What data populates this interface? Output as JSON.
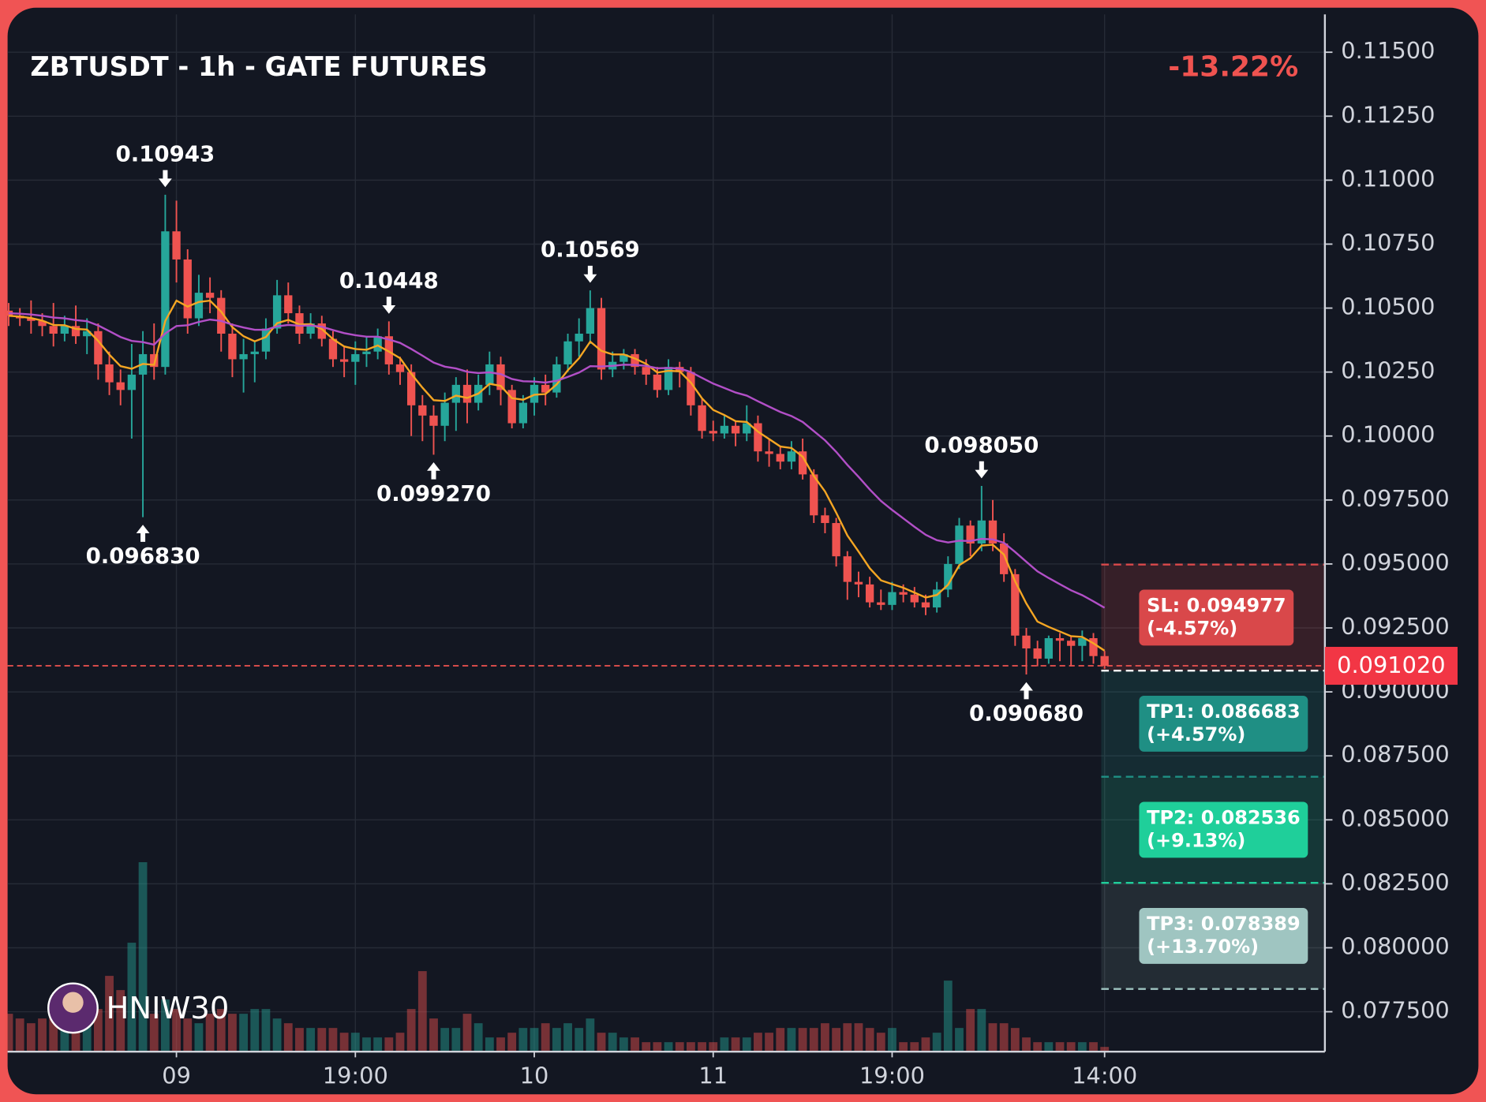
{
  "chart_data": {
    "type": "candlestick",
    "title": "ZBTUSDT - 1h - GATE FUTURES",
    "change_label": "-13.22%",
    "watermark": "HNIW30",
    "xlim": [
      -0.1,
      117.7
    ],
    "xticks": [
      {
        "value": 15,
        "label": "09"
      },
      {
        "value": 31,
        "label": "19:00"
      },
      {
        "value": 47,
        "label": "10"
      },
      {
        "value": 63,
        "label": "11"
      },
      {
        "value": 79,
        "label": "19:00"
      },
      {
        "value": 98,
        "label": "14:00"
      }
    ],
    "ylim": [
      0.07594,
      0.11648
    ],
    "yticks": [
      {
        "value": 0.115,
        "label": "0.11500"
      },
      {
        "value": 0.1125,
        "label": "0.11250"
      },
      {
        "value": 0.11,
        "label": "0.11000"
      },
      {
        "value": 0.1075,
        "label": "0.10750"
      },
      {
        "value": 0.105,
        "label": "0.10500"
      },
      {
        "value": 0.1025,
        "label": "0.10250"
      },
      {
        "value": 0.1,
        "label": "0.10000"
      },
      {
        "value": 0.0975,
        "label": "0.097500"
      },
      {
        "value": 0.095,
        "label": "0.095000"
      },
      {
        "value": 0.0925,
        "label": "0.092500"
      },
      {
        "value": 0.09,
        "label": "0.090000"
      },
      {
        "value": 0.0875,
        "label": "0.087500"
      },
      {
        "value": 0.085,
        "label": "0.085000"
      },
      {
        "value": 0.0825,
        "label": "0.082500"
      },
      {
        "value": 0.08,
        "label": "0.080000"
      },
      {
        "value": 0.0775,
        "label": "0.077500"
      }
    ],
    "grid": true,
    "up_color": "#26a69a",
    "down_color": "#ef5350",
    "open": [
      0.1049,
      0.1047,
      0.1046,
      0.1045,
      0.1043,
      0.104,
      0.1043,
      0.1039,
      0.1041,
      0.1028,
      0.1021,
      0.1018,
      0.1024,
      0.1032,
      0.1027,
      0.108,
      0.1069,
      0.1046,
      0.1056,
      0.1054,
      0.104,
      0.103,
      0.1032,
      0.1033,
      0.1042,
      0.1055,
      0.1048,
      0.104,
      0.1044,
      0.1038,
      0.103,
      0.1029,
      0.1032,
      0.1033,
      0.1039,
      0.1028,
      0.1025,
      0.1012,
      0.1008,
      0.1004,
      0.1013,
      0.102,
      0.1013,
      0.102,
      0.1028,
      0.1018,
      0.1005,
      0.1013,
      0.102,
      0.1017,
      0.1028,
      0.1037,
      0.104,
      0.105,
      0.1026,
      0.1029,
      0.1032,
      0.1027,
      0.1024,
      0.1018,
      0.1027,
      0.1025,
      0.1012,
      0.1002,
      0.1001,
      0.1004,
      0.1001,
      0.1005,
      0.0994,
      0.0993,
      0.099,
      0.0994,
      0.0985,
      0.0969,
      0.0966,
      0.0953,
      0.0943,
      0.0942,
      0.0935,
      0.0934,
      0.0939,
      0.0938,
      0.0935,
      0.0933,
      0.094,
      0.095,
      0.0965,
      0.0958,
      0.0967,
      0.0958,
      0.0946,
      0.0922,
      0.0917,
      0.0913,
      0.0921,
      0.092,
      0.0918,
      0.0921,
      0.0914
    ],
    "high": [
      0.1052,
      0.105,
      0.1053,
      0.1048,
      0.1052,
      0.1047,
      0.1051,
      0.1046,
      0.1044,
      0.1033,
      0.1026,
      0.1036,
      0.1041,
      0.1044,
      0.10943,
      0.1092,
      0.1073,
      0.1063,
      0.1062,
      0.1057,
      0.1044,
      0.1038,
      0.1037,
      0.1046,
      0.1061,
      0.106,
      0.1051,
      0.1048,
      0.1047,
      0.1041,
      0.1035,
      0.1037,
      0.1039,
      0.1042,
      0.10448,
      0.1031,
      0.1028,
      0.1016,
      0.1012,
      0.1017,
      0.1023,
      0.1026,
      0.1024,
      0.1033,
      0.1031,
      0.102,
      0.1016,
      0.1023,
      0.1024,
      0.1031,
      0.104,
      0.1046,
      0.10569,
      0.1054,
      0.1033,
      0.1034,
      0.1034,
      0.103,
      0.1027,
      0.103,
      0.1029,
      0.1027,
      0.1015,
      0.1006,
      0.1008,
      0.1006,
      0.1012,
      0.1008,
      0.0999,
      0.0996,
      0.0998,
      0.0999,
      0.0987,
      0.0972,
      0.0968,
      0.0955,
      0.0947,
      0.0945,
      0.094,
      0.0943,
      0.0942,
      0.0941,
      0.0938,
      0.0943,
      0.0953,
      0.0968,
      0.0967,
      0.09805,
      0.0975,
      0.0962,
      0.0948,
      0.0925,
      0.092,
      0.0922,
      0.0923,
      0.0922,
      0.0924,
      0.0923,
      0.0916
    ],
    "low": [
      0.1043,
      0.1043,
      0.104,
      0.1039,
      0.1035,
      0.1037,
      0.1036,
      0.1032,
      0.1022,
      0.1016,
      0.1012,
      0.0999,
      0.09683,
      0.1022,
      0.1024,
      0.106,
      0.104,
      0.1043,
      0.1048,
      0.1033,
      0.1023,
      0.1017,
      0.1021,
      0.103,
      0.104,
      0.1044,
      0.1036,
      0.1038,
      0.1035,
      0.1027,
      0.1023,
      0.102,
      0.1027,
      0.103,
      0.1024,
      0.102,
      0.1,
      0.0998,
      0.09927,
      0.0998,
      0.1002,
      0.1005,
      0.101,
      0.1016,
      0.1012,
      0.1003,
      0.1003,
      0.1008,
      0.1012,
      0.1015,
      0.1025,
      0.1031,
      0.1036,
      0.1022,
      0.1023,
      0.1026,
      0.1024,
      0.102,
      0.1015,
      0.1016,
      0.1019,
      0.1008,
      0.0999,
      0.0998,
      0.0999,
      0.0996,
      0.0998,
      0.099,
      0.0988,
      0.0987,
      0.0987,
      0.0983,
      0.0966,
      0.0962,
      0.0949,
      0.0936,
      0.0937,
      0.0933,
      0.0932,
      0.0932,
      0.0935,
      0.0933,
      0.093,
      0.0931,
      0.0937,
      0.0948,
      0.0953,
      0.0955,
      0.0955,
      0.0943,
      0.0918,
      0.09068,
      0.091,
      0.0911,
      0.0912,
      0.091,
      0.0912,
      0.0911,
      0.0909
    ],
    "close": [
      0.1047,
      0.1046,
      0.1045,
      0.1043,
      0.104,
      0.1043,
      0.1039,
      0.1041,
      0.1028,
      0.1021,
      0.1018,
      0.1024,
      0.1032,
      0.1027,
      0.108,
      0.1069,
      0.1046,
      0.1056,
      0.1054,
      0.104,
      0.103,
      0.1032,
      0.1033,
      0.1042,
      0.1055,
      0.1048,
      0.104,
      0.1044,
      0.1038,
      0.103,
      0.1029,
      0.1032,
      0.1033,
      0.1039,
      0.1028,
      0.1025,
      0.1012,
      0.1008,
      0.1004,
      0.1013,
      0.102,
      0.1013,
      0.102,
      0.1028,
      0.1018,
      0.1005,
      0.1013,
      0.102,
      0.1017,
      0.1028,
      0.1037,
      0.104,
      0.105,
      0.1026,
      0.1029,
      0.1032,
      0.1027,
      0.1024,
      0.1018,
      0.1027,
      0.1025,
      0.1012,
      0.1002,
      0.1001,
      0.1004,
      0.1001,
      0.1005,
      0.0994,
      0.0993,
      0.099,
      0.0994,
      0.0985,
      0.0969,
      0.0966,
      0.0953,
      0.0943,
      0.0942,
      0.0935,
      0.0934,
      0.0939,
      0.0938,
      0.0935,
      0.0933,
      0.094,
      0.095,
      0.0965,
      0.0958,
      0.0967,
      0.0958,
      0.0946,
      0.0922,
      0.0917,
      0.0913,
      0.0921,
      0.092,
      0.0918,
      0.0921,
      0.0914,
      0.09102
    ],
    "volume": [
      40,
      35,
      30,
      35,
      45,
      40,
      35,
      50,
      45,
      80,
      65,
      115,
      200,
      40,
      55,
      45,
      35,
      30,
      40,
      45,
      40,
      40,
      45,
      45,
      35,
      30,
      25,
      25,
      25,
      25,
      20,
      20,
      15,
      15,
      15,
      20,
      45,
      85,
      35,
      25,
      25,
      40,
      30,
      15,
      15,
      20,
      25,
      25,
      30,
      25,
      30,
      25,
      35,
      20,
      20,
      15,
      15,
      10,
      10,
      10,
      10,
      10,
      10,
      10,
      15,
      15,
      15,
      20,
      20,
      25,
      25,
      25,
      25,
      30,
      25,
      30,
      30,
      25,
      20,
      25,
      10,
      10,
      15,
      20,
      75,
      25,
      45,
      45,
      30,
      30,
      25,
      15,
      10,
      10,
      10,
      10,
      10,
      10,
      5
    ],
    "lines": [
      {
        "color": "#f5a623",
        "values": [
          0.1047,
          0.10467,
          0.10461,
          0.10451,
          0.10434,
          0.10433,
          0.10419,
          0.10416,
          0.10372,
          0.10318,
          0.10273,
          0.10263,
          0.10282,
          0.10278,
          0.1045,
          0.10529,
          0.10506,
          0.10524,
          0.10529,
          0.10486,
          0.10425,
          0.1039,
          0.1037,
          0.10387,
          0.10441,
          0.10454,
          0.10436,
          0.10437,
          0.10418,
          0.10379,
          0.1035,
          0.1034,
          0.10337,
          0.10354,
          0.1033,
          0.10304,
          0.10243,
          0.10189,
          0.1014,
          0.10137,
          0.10158,
          0.10149,
          0.10166,
          0.10204,
          0.10196,
          0.10148,
          0.10142,
          0.10161,
          0.10164,
          0.10202,
          0.10257,
          0.10304,
          0.10369,
          0.10333,
          0.10319,
          0.10319,
          0.10303,
          0.10282,
          0.10248,
          0.10255,
          0.10253,
          0.10209,
          0.10147,
          0.10102,
          0.10082,
          0.10058,
          0.10055,
          0.10017,
          0.09988,
          0.09959,
          0.09953,
          0.09919,
          0.09843,
          0.09783,
          0.097,
          0.09611,
          0.09548,
          0.09483,
          0.09436,
          0.09421,
          0.09407,
          0.09388,
          0.09369,
          0.09379,
          0.09419,
          0.09495,
          0.09523,
          0.09572,
          0.09575,
          0.09537,
          0.09432,
          0.09346,
          0.09275,
          0.09254,
          0.09236,
          0.09218,
          0.09215,
          0.0919,
          0.09161
        ]
      },
      {
        "color": "#b24fc7",
        "values": [
          0.1048,
          0.10478,
          0.10475,
          0.1047,
          0.10463,
          0.1046,
          0.10453,
          0.10449,
          0.10432,
          0.1041,
          0.10387,
          0.10372,
          0.10367,
          0.10357,
          0.10401,
          0.1043,
          0.10433,
          0.10446,
          0.10455,
          0.1045,
          0.10435,
          0.10424,
          0.10415,
          0.10415,
          0.10429,
          0.10434,
          0.10431,
          0.10432,
          0.10427,
          0.10414,
          0.10402,
          0.10394,
          0.10388,
          0.10388,
          0.10377,
          0.10364,
          0.1034,
          0.10314,
          0.10287,
          0.10271,
          0.10264,
          0.10251,
          0.10246,
          0.10249,
          0.10242,
          0.10223,
          0.10214,
          0.10213,
          0.10209,
          0.10216,
          0.10231,
          0.10248,
          0.10273,
          0.10272,
          0.10274,
          0.10279,
          0.10278,
          0.10274,
          0.10265,
          0.10266,
          0.10264,
          0.1025,
          0.10227,
          0.10205,
          0.10188,
          0.1017,
          0.10158,
          0.10136,
          0.10115,
          0.10094,
          0.10078,
          0.10055,
          0.10019,
          0.09983,
          0.09938,
          0.09887,
          0.0984,
          0.09791,
          0.09746,
          0.09711,
          0.09678,
          0.09645,
          0.09614,
          0.09593,
          0.09584,
          0.09591,
          0.0959,
          0.09598,
          0.09596,
          0.09583,
          0.09547,
          0.09509,
          0.09471,
          0.09445,
          0.09421,
          0.09397,
          0.09378,
          0.09354,
          0.09329
        ]
      }
    ],
    "annotations": [
      {
        "x": 14,
        "value": 0.10943,
        "label": "0.10943",
        "side": "above"
      },
      {
        "x": 12,
        "value": 0.09683,
        "label": "0.096830",
        "side": "below"
      },
      {
        "x": 34,
        "value": 0.10448,
        "label": "0.10448",
        "side": "above"
      },
      {
        "x": 38,
        "value": 0.09927,
        "label": "0.099270",
        "side": "below"
      },
      {
        "x": 52,
        "value": 0.10569,
        "label": "0.10569",
        "side": "above"
      },
      {
        "x": 87,
        "value": 0.09805,
        "label": "0.098050",
        "side": "above"
      },
      {
        "x": 91,
        "value": 0.09068,
        "label": "0.090680",
        "side": "below"
      }
    ],
    "last_price": {
      "value": 0.09102,
      "label": "0.091020"
    },
    "entry": 0.09083,
    "levels": [
      {
        "label": "SL: 0.094977",
        "note": "(-4.57%)",
        "value": 0.094977,
        "color": "#d9484a"
      },
      {
        "label": "TP1: 0.086683",
        "note": "(+4.57%)",
        "value": 0.086683,
        "color": "#1f8f84"
      },
      {
        "label": "TP2: 0.082536",
        "note": "(+9.13%)",
        "value": 0.082536,
        "color": "#1fcf9a"
      },
      {
        "label": "TP3: 0.078389",
        "note": "(+13.70%)",
        "value": 0.078389,
        "color": "#9fc5c1"
      }
    ]
  }
}
